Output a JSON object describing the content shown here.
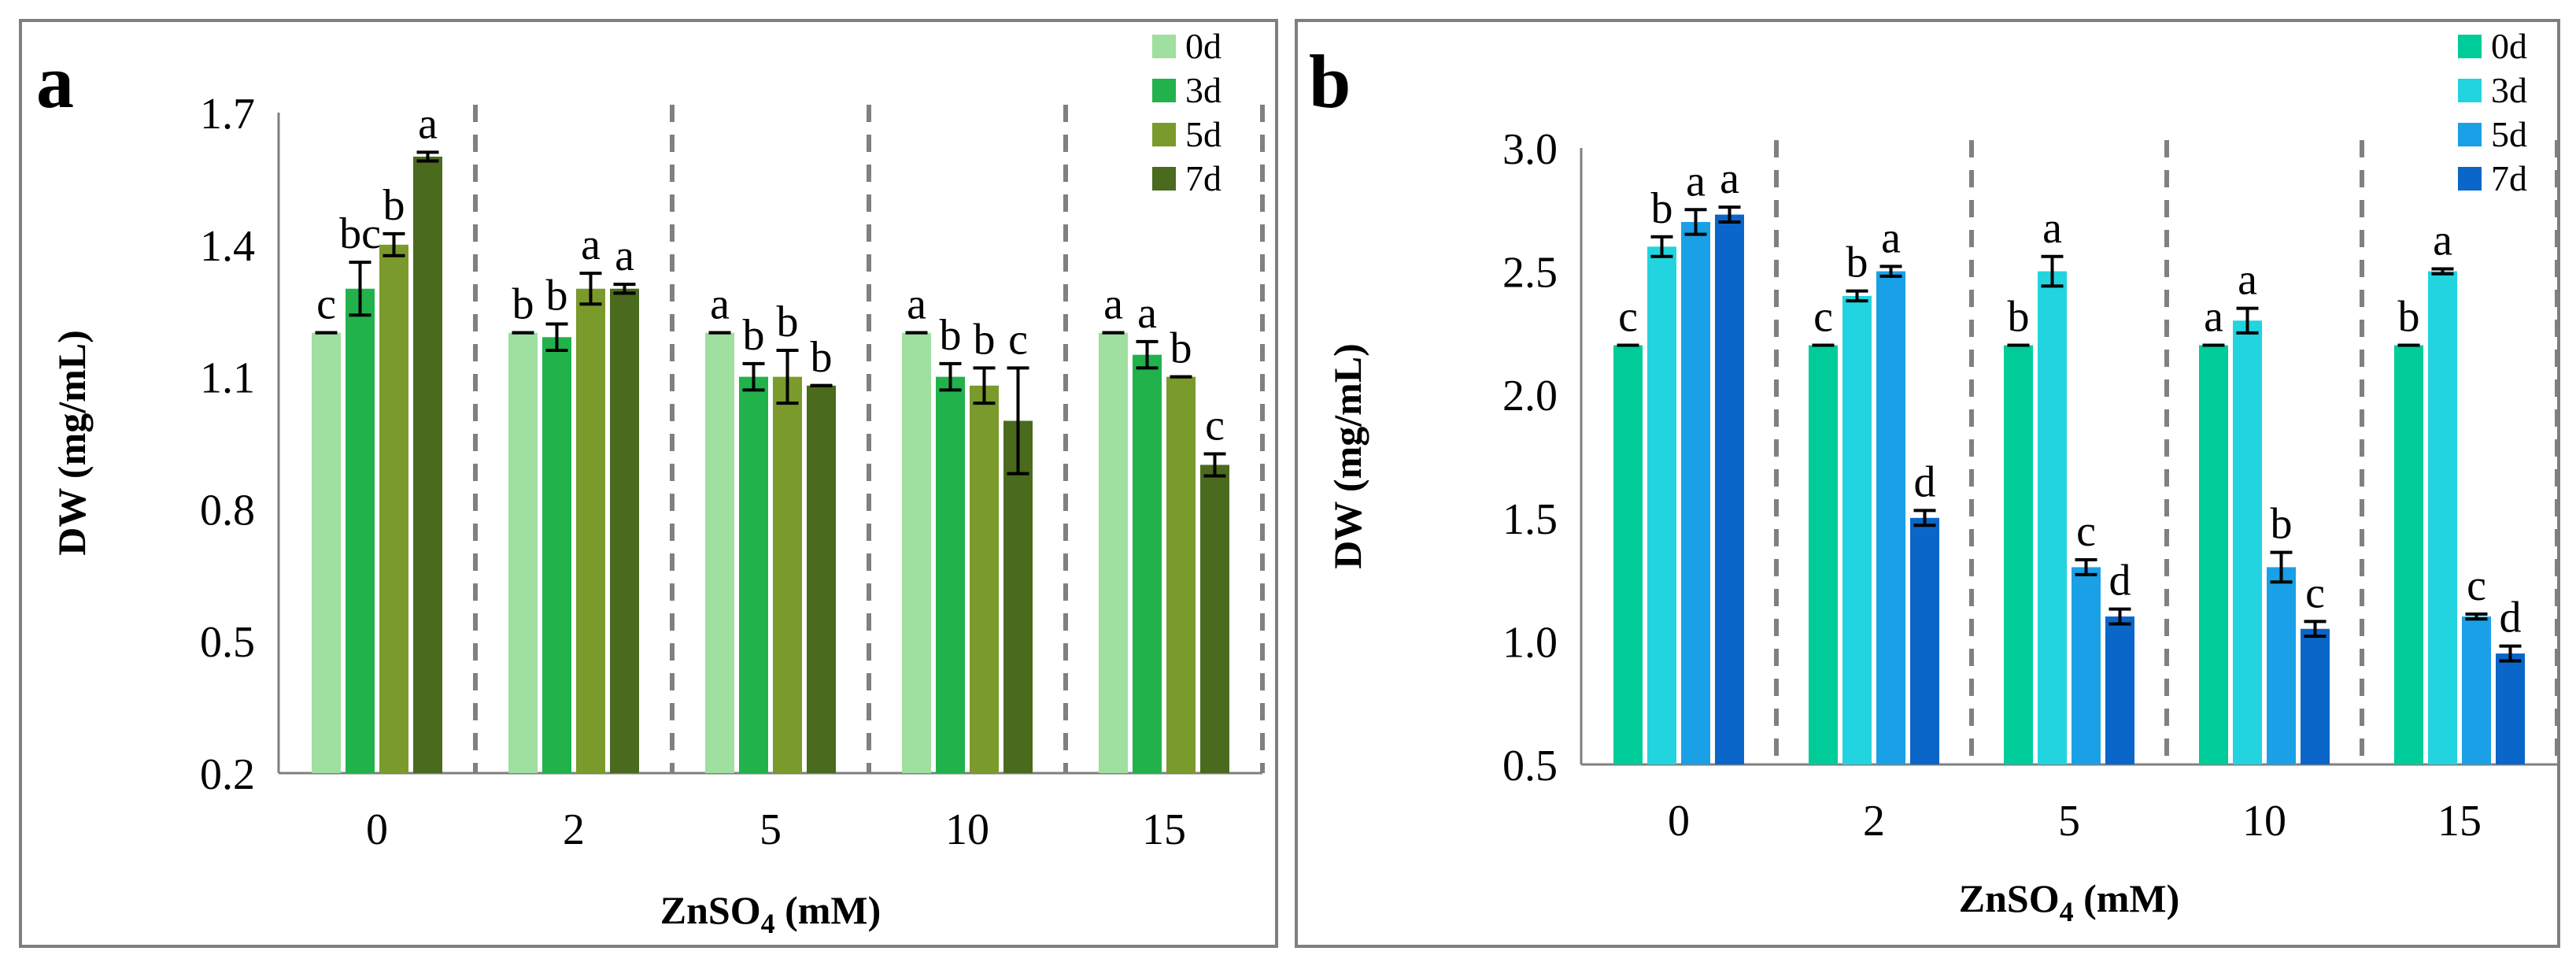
{
  "chart_data": [
    {
      "panel_label": "a",
      "type": "bar",
      "xlabel_main": "ZnSO",
      "xlabel_sub": "4",
      "xlabel_tail": " (mM)",
      "ylabel": "DW (mg/mL)",
      "ylim": [
        0.2,
        1.7
      ],
      "yticks": [
        "0.2",
        "0.5",
        "0.8",
        "1.1",
        "1.4",
        "1.7"
      ],
      "categories": [
        "0",
        "2",
        "5",
        "10",
        "15"
      ],
      "legend_position": "top-right",
      "series": [
        {
          "name": "0d",
          "color": "#9fdf9f",
          "values": [
            1.2,
            1.2,
            1.2,
            1.2,
            1.2
          ],
          "errors": [
            0,
            0,
            0,
            0,
            0
          ],
          "letters": [
            "c",
            "b",
            "a",
            "a",
            "a"
          ]
        },
        {
          "name": "3d",
          "color": "#22b24c",
          "values": [
            1.3,
            1.19,
            1.1,
            1.1,
            1.15
          ],
          "errors": [
            0.06,
            0.03,
            0.03,
            0.03,
            0.03
          ],
          "letters": [
            "bc",
            "b",
            "b",
            "b",
            "a"
          ]
        },
        {
          "name": "5d",
          "color": "#7a9a2c",
          "values": [
            1.4,
            1.3,
            1.1,
            1.08,
            1.1
          ],
          "errors": [
            0.025,
            0.035,
            0.06,
            0.04,
            0.0
          ],
          "letters": [
            "b",
            "a",
            "b",
            "b",
            "b"
          ]
        },
        {
          "name": "7d",
          "color": "#4a6a1e",
          "values": [
            1.6,
            1.3,
            1.08,
            1.0,
            0.9
          ],
          "errors": [
            0.01,
            0.01,
            0.0,
            0.12,
            0.025
          ],
          "letters": [
            "a",
            "a",
            "b",
            "c",
            "c"
          ]
        }
      ]
    },
    {
      "panel_label": "b",
      "type": "bar",
      "xlabel_main": "ZnSO",
      "xlabel_sub": "4",
      "xlabel_tail": " (mM)",
      "ylabel": "DW (mg/mL)",
      "ylim": [
        0.5,
        3.0
      ],
      "yticks": [
        "0.5",
        "1.0",
        "1.5",
        "2.0",
        "2.5",
        "3.0"
      ],
      "categories": [
        "0",
        "2",
        "5",
        "10",
        "15"
      ],
      "legend_position": "top-right",
      "series": [
        {
          "name": "0d",
          "color": "#00cc99",
          "values": [
            2.2,
            2.2,
            2.2,
            2.2,
            2.2
          ],
          "errors": [
            0,
            0,
            0,
            0,
            0
          ],
          "letters": [
            "c",
            "c",
            "b",
            "a",
            "b"
          ]
        },
        {
          "name": "3d",
          "color": "#22d3e0",
          "values": [
            2.6,
            2.4,
            2.5,
            2.3,
            2.5
          ],
          "errors": [
            0.04,
            0.02,
            0.06,
            0.05,
            0.01
          ],
          "letters": [
            "b",
            "b",
            "a",
            "a",
            "a"
          ]
        },
        {
          "name": "5d",
          "color": "#1aa0e6",
          "values": [
            2.7,
            2.5,
            1.3,
            1.3,
            1.1
          ],
          "errors": [
            0.05,
            0.02,
            0.03,
            0.06,
            0.01
          ],
          "letters": [
            "a",
            "a",
            "c",
            "b",
            "c"
          ]
        },
        {
          "name": "7d",
          "color": "#0a66c8",
          "values": [
            2.73,
            1.5,
            1.1,
            1.05,
            0.95
          ],
          "errors": [
            0.03,
            0.03,
            0.03,
            0.03,
            0.03
          ],
          "letters": [
            "a",
            "d",
            "d",
            "c",
            "d"
          ]
        }
      ]
    }
  ]
}
